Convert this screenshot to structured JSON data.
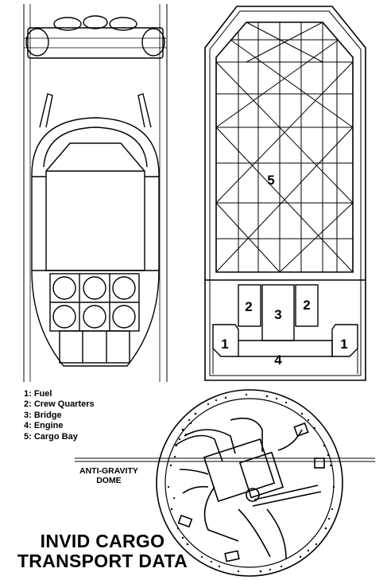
{
  "legend": {
    "items": [
      "1: Fuel",
      "2: Crew Quarters",
      "3: Bridge",
      "4: Engine",
      "5: Cargo Bay"
    ]
  },
  "labels": {
    "cargo_bay": "5",
    "crew_left": "2",
    "crew_right": "2",
    "bridge": "3",
    "fuel_left": "1",
    "fuel_right": "1",
    "engine": "4"
  },
  "callout": {
    "line1": "ANTI-GRAVITY",
    "line2": "DOME"
  },
  "title": {
    "line1": "INVID CARGO",
    "line2": "TRANSPORT DATA"
  }
}
